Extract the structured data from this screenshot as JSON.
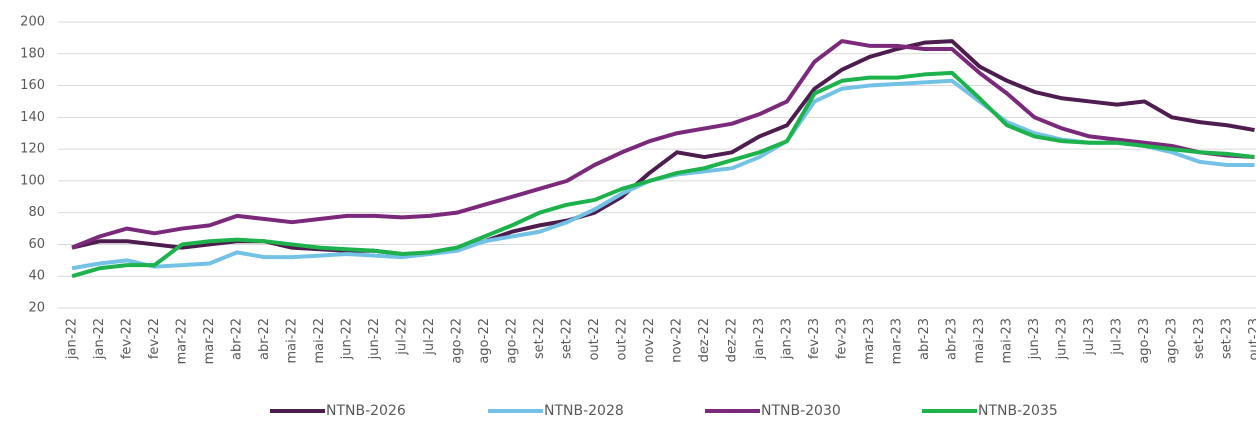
{
  "chart_data": {
    "type": "line",
    "categories": [
      "jan-22",
      "jan-22",
      "fev-22",
      "fev-22",
      "mar-22",
      "mar-22",
      "abr-22",
      "abr-22",
      "mai-22",
      "mai-22",
      "jun-22",
      "jun-22",
      "jul-22",
      "jul-22",
      "ago-22",
      "ago-22",
      "ago-22",
      "set-22",
      "set-22",
      "out-22",
      "out-22",
      "nov-22",
      "nov-22",
      "dez-22",
      "dez-22",
      "jan-23",
      "jan-23",
      "fev-23",
      "fev-23",
      "mar-23",
      "mar-23",
      "abr-23",
      "abr-23",
      "mai-23",
      "mai-23",
      "jun-23",
      "jun-23",
      "jul-23",
      "jul-23",
      "ago-23",
      "ago-23",
      "set-23",
      "set-23",
      "out-23"
    ],
    "series": [
      {
        "name": "NTNB-2026",
        "color": "#4e1d4f",
        "values": [
          58,
          62,
          62,
          60,
          58,
          60,
          62,
          62,
          58,
          57,
          56,
          56,
          54,
          54,
          57,
          62,
          68,
          72,
          75,
          80,
          90,
          105,
          118,
          115,
          118,
          128,
          135,
          158,
          170,
          178,
          183,
          187,
          188,
          172,
          163,
          156,
          152,
          150,
          148,
          150,
          140,
          137,
          135,
          132
        ]
      },
      {
        "name": "NTNB-2028",
        "color": "#74c1e6",
        "values": [
          45,
          48,
          50,
          46,
          47,
          48,
          55,
          52,
          52,
          53,
          54,
          53,
          52,
          54,
          56,
          62,
          65,
          68,
          74,
          82,
          92,
          100,
          104,
          106,
          108,
          115,
          125,
          150,
          158,
          160,
          161,
          162,
          163,
          150,
          137,
          130,
          126,
          124,
          124,
          122,
          118,
          112,
          110,
          110
        ]
      },
      {
        "name": "NTNB-2030",
        "color": "#7b2a7b",
        "values": [
          58,
          65,
          70,
          67,
          70,
          72,
          78,
          76,
          74,
          76,
          78,
          78,
          77,
          78,
          80,
          85,
          90,
          95,
          100,
          110,
          118,
          125,
          130,
          133,
          136,
          142,
          150,
          175,
          188,
          185,
          185,
          183,
          183,
          168,
          155,
          140,
          133,
          128,
          126,
          124,
          122,
          118,
          116,
          115
        ]
      },
      {
        "name": "NTNB-2035",
        "color": "#1db24c",
        "values": [
          40,
          45,
          47,
          47,
          60,
          62,
          63,
          62,
          60,
          58,
          57,
          56,
          54,
          55,
          58,
          65,
          72,
          80,
          85,
          88,
          95,
          100,
          105,
          108,
          113,
          118,
          125,
          155,
          163,
          165,
          165,
          167,
          168,
          152,
          135,
          128,
          125,
          124,
          124,
          122,
          120,
          118,
          117,
          115
        ]
      }
    ],
    "ylim": [
      20,
      200
    ],
    "yticks": [
      20,
      40,
      60,
      80,
      100,
      120,
      140,
      160,
      180,
      200
    ],
    "grid": true
  }
}
